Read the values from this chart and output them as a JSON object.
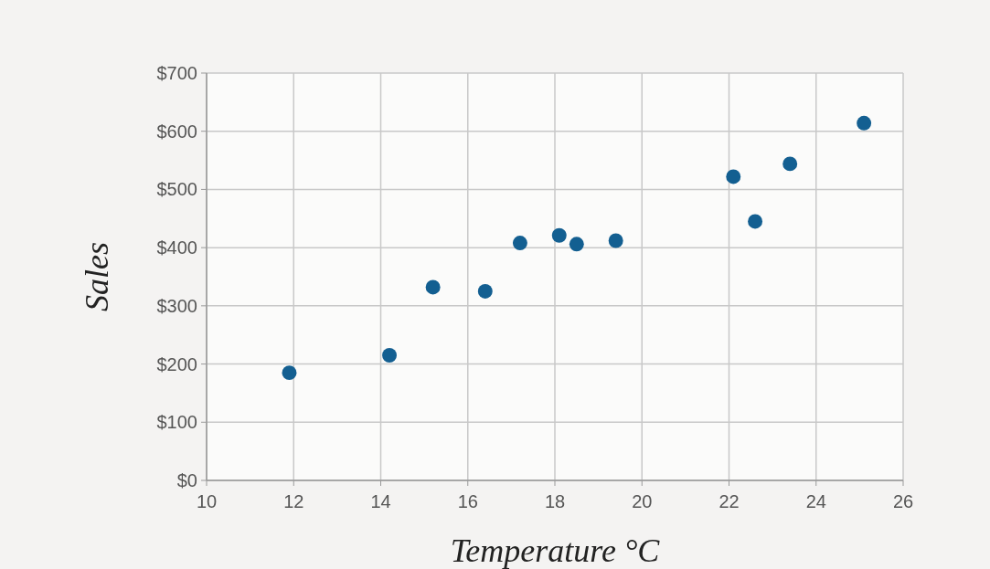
{
  "chart_data": {
    "type": "scatter",
    "xlabel": "Temperature °C",
    "ylabel": "Sales",
    "x": [
      11.9,
      14.2,
      15.2,
      16.4,
      17.2,
      18.1,
      18.5,
      19.4,
      22.1,
      22.6,
      23.4,
      25.1
    ],
    "values": [
      185,
      215,
      332,
      325,
      408,
      421,
      406,
      412,
      522,
      445,
      544,
      614
    ],
    "color": "#135f91",
    "marker": "circle",
    "grid": true,
    "xlim": [
      10,
      26
    ],
    "xticks": [
      10,
      12,
      14,
      16,
      18,
      20,
      22,
      24,
      26
    ],
    "ylim": [
      0,
      700
    ],
    "yticks": [
      {
        "value": 0,
        "label": "$0"
      },
      {
        "value": 100,
        "label": "$100"
      },
      {
        "value": 200,
        "label": "$200"
      },
      {
        "value": 300,
        "label": "$300"
      },
      {
        "value": 400,
        "label": "$400"
      },
      {
        "value": 500,
        "label": "$500"
      },
      {
        "value": 600,
        "label": "$600"
      },
      {
        "value": 700,
        "label": "$700"
      }
    ]
  }
}
